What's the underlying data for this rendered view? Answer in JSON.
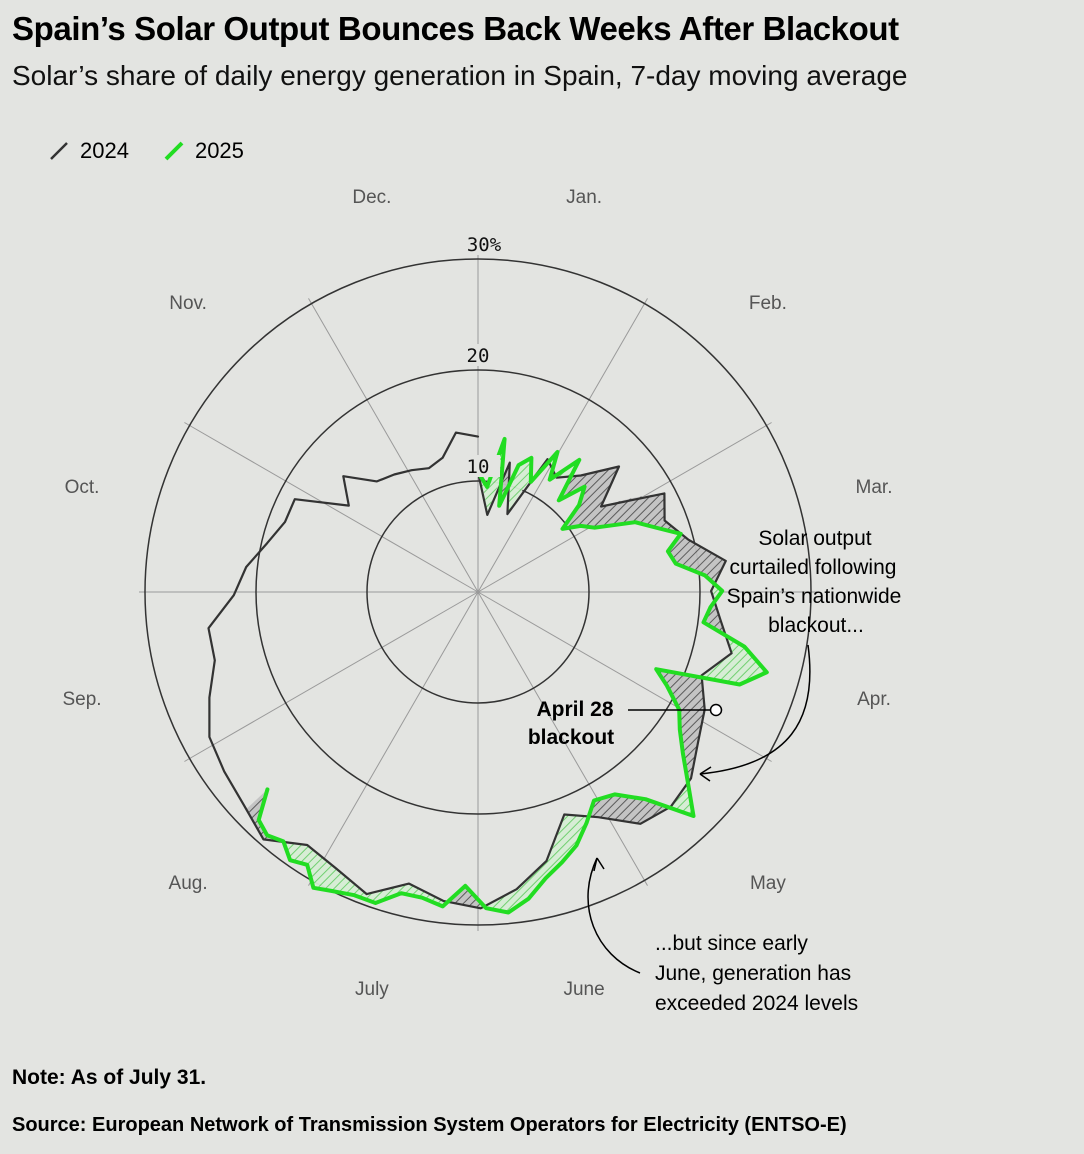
{
  "title": "Spain’s Solar Output Bounces Back Weeks After Blackout",
  "subtitle": "Solar’s share of daily energy generation in Spain, 7-day moving average",
  "note": "Note: As of July 31.",
  "source": "Source: European Network of Transmission System Operators for Electricity (ENTSO-E)",
  "colors": {
    "background": "#e3e4e1",
    "series_2024": "#333333",
    "series_2025": "#22dd22",
    "grid": "#9a9a9a",
    "hatch_gain": "#8fe08f"
  },
  "chart_data": {
    "type": "radial-line",
    "radial_axis": {
      "ticks": [
        10,
        20,
        30
      ],
      "tick_labels": [
        "10",
        "20",
        "30%"
      ],
      "range": [
        0,
        30
      ]
    },
    "angular_axis": {
      "months": [
        "Jan.",
        "Feb.",
        "Mar.",
        "Apr.",
        "May",
        "June",
        "July",
        "Aug.",
        "Sep.",
        "Oct.",
        "Nov.",
        "Dec."
      ],
      "direction": "clockwise",
      "start": "top"
    },
    "legend": {
      "position": "top-left",
      "entries": [
        "2024",
        "2025"
      ]
    },
    "series": [
      {
        "name": "2024",
        "points": [
          [
            0,
            10.8
          ],
          [
            7,
            7.0
          ],
          [
            14,
            12.0
          ],
          [
            21,
            7.5
          ],
          [
            28,
            13.5
          ],
          [
            35,
            12.5
          ],
          [
            42,
            14.0
          ],
          [
            49,
            17.0
          ],
          [
            56,
            13.5
          ],
          [
            63,
            19.0
          ],
          [
            70,
            18.0
          ],
          [
            77,
            19.5
          ],
          [
            84,
            22.5
          ],
          [
            91,
            21.0
          ],
          [
            98,
            22.0
          ],
          [
            105,
            23.5
          ],
          [
            112,
            21.5
          ],
          [
            119,
            23.0
          ],
          [
            126,
            24.0
          ],
          [
            133,
            25.5
          ],
          [
            140,
            26.0
          ],
          [
            147,
            25.5
          ],
          [
            154,
            23.0
          ],
          [
            161,
            21.5
          ],
          [
            168,
            25.0
          ],
          [
            175,
            27.0
          ],
          [
            182,
            28.5
          ],
          [
            189,
            28.0
          ],
          [
            196,
            27.0
          ],
          [
            203,
            29.0
          ],
          [
            210,
            28.0
          ],
          [
            217,
            27.5
          ],
          [
            224,
            29.5
          ],
          [
            231,
            28.5
          ],
          [
            238,
            28.0
          ],
          [
            245,
            27.5
          ],
          [
            252,
            26.0
          ],
          [
            259,
            24.5
          ],
          [
            266,
            24.5
          ],
          [
            273,
            22.0
          ],
          [
            280,
            21.0
          ],
          [
            287,
            19.5
          ],
          [
            294,
            18.5
          ],
          [
            301,
            18.5
          ],
          [
            308,
            14.0
          ],
          [
            315,
            16.0
          ],
          [
            322,
            13.5
          ],
          [
            329,
            13.0
          ],
          [
            336,
            12.5
          ],
          [
            343,
            12.0
          ],
          [
            350,
            12.5
          ],
          [
            357,
            14.5
          ],
          [
            365,
            14.0
          ]
        ]
      },
      {
        "name": "2025",
        "points": [
          [
            0,
            10.8
          ],
          [
            5,
            9.5
          ],
          [
            10,
            14.0
          ],
          [
            14,
            8.0
          ],
          [
            18,
            12.0
          ],
          [
            22,
            13.0
          ],
          [
            26,
            11.0
          ],
          [
            30,
            14.5
          ],
          [
            33,
            12.0
          ],
          [
            38,
            15.0
          ],
          [
            42,
            11.0
          ],
          [
            46,
            13.5
          ],
          [
            50,
            12.0
          ],
          [
            54,
            9.5
          ],
          [
            58,
            11.0
          ],
          [
            62,
            12.0
          ],
          [
            67,
            15.5
          ],
          [
            71,
            17.0
          ],
          [
            75,
            19.0
          ],
          [
            79,
            17.5
          ],
          [
            83,
            18.0
          ],
          [
            87,
            20.5
          ],
          [
            91,
            22.0
          ],
          [
            95,
            21.0
          ],
          [
            99,
            20.5
          ],
          [
            103,
            24.5
          ],
          [
            107,
            27.0
          ],
          [
            111,
            25.0
          ],
          [
            115,
            17.5
          ],
          [
            118,
            19.0
          ],
          [
            122,
            21.0
          ],
          [
            126,
            22.0
          ],
          [
            130,
            23.5
          ],
          [
            134,
            25.5
          ],
          [
            138,
            28.0
          ],
          [
            143,
            24.0
          ],
          [
            148,
            22.0
          ],
          [
            153,
            21.5
          ],
          [
            157,
            23.0
          ],
          [
            161,
            24.5
          ],
          [
            165,
            25.5
          ],
          [
            169,
            26.5
          ],
          [
            173,
            28.0
          ],
          [
            177,
            29.0
          ],
          [
            181,
            28.5
          ],
          [
            185,
            26.5
          ],
          [
            189,
            28.5
          ],
          [
            193,
            28.0
          ],
          [
            197,
            28.0
          ],
          [
            201,
            29.5
          ],
          [
            205,
            29.5
          ],
          [
            209,
            30.0
          ],
          [
            212,
            30.5
          ],
          [
            215,
            29.0
          ],
          [
            218,
            29.5
          ],
          [
            221,
            28.5
          ],
          [
            224,
            29.0
          ],
          [
            227,
            28.5
          ],
          [
            230,
            26.0
          ]
        ]
      }
    ],
    "annotations": [
      {
        "id": "blackout",
        "lines": [
          "April 28",
          "blackout"
        ]
      },
      {
        "id": "curtailed",
        "lines": [
          "Solar output",
          "curtailed following",
          "Spain’s nationwide",
          "blackout..."
        ]
      },
      {
        "id": "exceeded",
        "lines": [
          "...but since early",
          "June, generation has",
          "exceeded 2024 levels"
        ]
      }
    ]
  }
}
